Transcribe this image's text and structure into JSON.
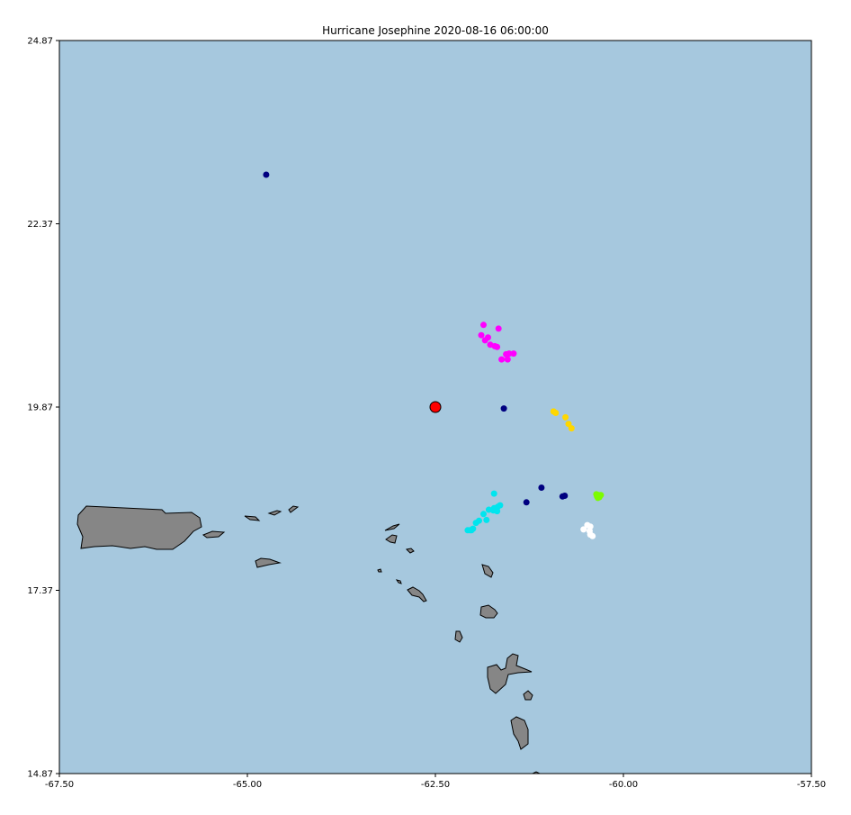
{
  "title": "Hurricane Josephine 2020-08-16 06:00:00",
  "colors": {
    "ocean": "#a6c8de",
    "land": "#868686",
    "center_marker": "#ff0000"
  },
  "map": {
    "xlim": [
      -67.5,
      -57.5
    ],
    "ylim": [
      14.87,
      24.87
    ],
    "xticks": [
      "-67.50",
      "-65.00",
      "-62.50",
      "-60.00",
      "-57.50"
    ],
    "yticks": [
      "14.87",
      "17.37",
      "19.87",
      "22.37",
      "24.87"
    ]
  },
  "storm_center": {
    "lon": -62.5,
    "lat": 19.87
  },
  "observation_groups": [
    {
      "color": "#000080",
      "points": [
        [
          -64.75,
          23.04
        ],
        [
          -61.59,
          19.85
        ],
        [
          -61.09,
          18.77
        ],
        [
          -60.78,
          18.66
        ],
        [
          -60.81,
          18.65
        ],
        [
          -61.29,
          18.57
        ]
      ]
    },
    {
      "color": "#ff00ff",
      "points": [
        [
          -61.86,
          20.99
        ],
        [
          -61.66,
          20.94
        ],
        [
          -61.89,
          20.85
        ],
        [
          -61.8,
          20.82
        ],
        [
          -61.84,
          20.78
        ],
        [
          -61.77,
          20.72
        ],
        [
          -61.71,
          20.7
        ],
        [
          -61.68,
          20.69
        ],
        [
          -61.52,
          20.6
        ],
        [
          -61.46,
          20.6
        ],
        [
          -61.56,
          20.59
        ],
        [
          -61.62,
          20.52
        ],
        [
          -61.54,
          20.52
        ]
      ]
    },
    {
      "color": "#ffd700",
      "points": [
        [
          -60.93,
          19.81
        ],
        [
          -60.9,
          19.79
        ],
        [
          -60.77,
          19.73
        ],
        [
          -60.73,
          19.64
        ],
        [
          -60.69,
          19.58
        ]
      ]
    },
    {
      "color": "#00e5ee",
      "points": [
        [
          -61.72,
          18.69
        ],
        [
          -61.64,
          18.53
        ],
        [
          -61.67,
          18.51
        ],
        [
          -61.72,
          18.49
        ],
        [
          -61.79,
          18.47
        ],
        [
          -61.73,
          18.46
        ],
        [
          -61.68,
          18.45
        ],
        [
          -61.86,
          18.41
        ],
        [
          -61.82,
          18.33
        ],
        [
          -61.92,
          18.32
        ],
        [
          -61.96,
          18.29
        ],
        [
          -62.0,
          18.21
        ],
        [
          -62.04,
          18.19
        ],
        [
          -62.02,
          18.19
        ],
        [
          -62.07,
          18.19
        ]
      ]
    },
    {
      "color": "#7cfc00",
      "points": [
        [
          -60.36,
          18.68
        ],
        [
          -60.33,
          18.67
        ],
        [
          -60.31,
          18.66
        ],
        [
          -60.35,
          18.65
        ],
        [
          -60.32,
          18.64
        ],
        [
          -60.34,
          18.63
        ],
        [
          -60.3,
          18.67
        ]
      ]
    },
    {
      "color": "#ffffff",
      "points": [
        [
          -60.48,
          18.26
        ],
        [
          -60.44,
          18.24
        ],
        [
          -60.53,
          18.2
        ],
        [
          -60.45,
          18.18
        ],
        [
          -60.44,
          18.13
        ],
        [
          -60.41,
          18.11
        ]
      ]
    }
  ]
}
